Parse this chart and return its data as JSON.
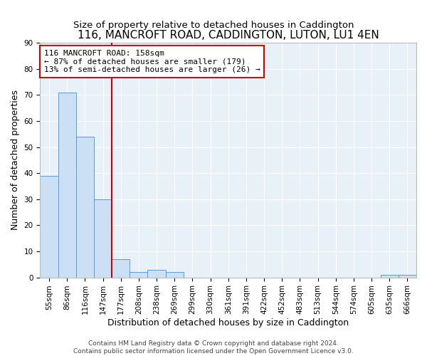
{
  "title": "116, MANCROFT ROAD, CADDINGTON, LUTON, LU1 4EN",
  "subtitle": "Size of property relative to detached houses in Caddington",
  "xlabel": "Distribution of detached houses by size in Caddington",
  "ylabel": "Number of detached properties",
  "bar_labels": [
    "55sqm",
    "86sqm",
    "116sqm",
    "147sqm",
    "177sqm",
    "208sqm",
    "238sqm",
    "269sqm",
    "299sqm",
    "330sqm",
    "361sqm",
    "391sqm",
    "422sqm",
    "452sqm",
    "483sqm",
    "513sqm",
    "544sqm",
    "574sqm",
    "605sqm",
    "635sqm",
    "666sqm"
  ],
  "bar_values": [
    39,
    71,
    54,
    30,
    7,
    2,
    3,
    2,
    0,
    0,
    0,
    0,
    0,
    0,
    0,
    0,
    0,
    0,
    0,
    1,
    1
  ],
  "bar_color": "#cce0f5",
  "bar_edgecolor": "#5b9bd5",
  "ylim": [
    0,
    90
  ],
  "yticks": [
    0,
    10,
    20,
    30,
    40,
    50,
    60,
    70,
    80,
    90
  ],
  "red_line_x": 3.5,
  "red_line_color": "#cc0000",
  "annotation_line1": "116 MANCROFT ROAD: 158sqm",
  "annotation_line2": "← 87% of detached houses are smaller (179)",
  "annotation_line3": "13% of semi-detached houses are larger (26) →",
  "annotation_box_color": "#cc0000",
  "annotation_box_bg": "#ffffff",
  "footer_text": "Contains HM Land Registry data © Crown copyright and database right 2024.\nContains public sector information licensed under the Open Government Licence v3.0.",
  "background_color": "#e8f0f8",
  "grid_color": "#ffffff",
  "title_fontsize": 11,
  "subtitle_fontsize": 9.5,
  "axis_label_fontsize": 9,
  "tick_fontsize": 7.5,
  "annotation_fontsize": 8,
  "footer_fontsize": 6.5
}
